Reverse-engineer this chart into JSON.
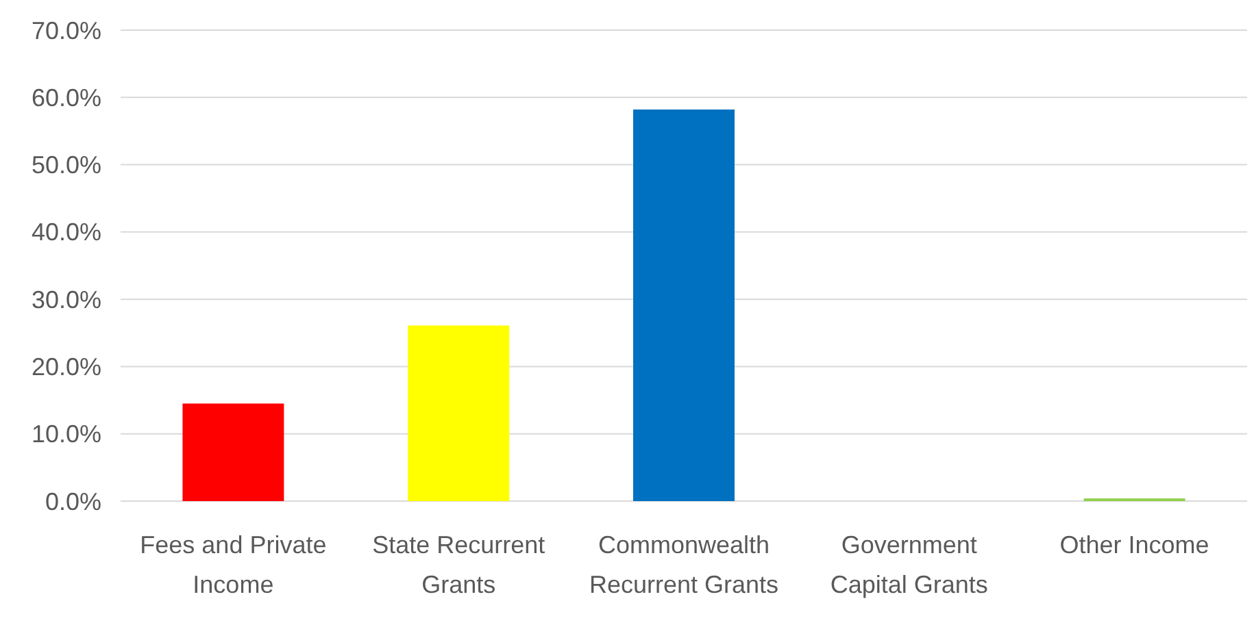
{
  "chart_data": {
    "type": "bar",
    "categories": [
      "Fees and Private Income",
      "State Recurrent Grants",
      "Commonwealth Recurrent Grants",
      "Government Capital Grants",
      "Other Income"
    ],
    "values": [
      14.5,
      26.1,
      58.2,
      0,
      0.4
    ],
    "colors": [
      "#ff0000",
      "#ffff00",
      "#0070c0",
      "#4472c4",
      "#92d050"
    ],
    "ylim": [
      0,
      70
    ],
    "yticks": [
      {
        "value": 0,
        "label": "0.0%"
      },
      {
        "value": 10,
        "label": "10.0%"
      },
      {
        "value": 20,
        "label": "20.0%"
      },
      {
        "value": 30,
        "label": "30.0%"
      },
      {
        "value": 40,
        "label": "40.0%"
      },
      {
        "value": 50,
        "label": "50.0%"
      },
      {
        "value": 60,
        "label": "60.0%"
      },
      {
        "value": 70,
        "label": "70.0%"
      }
    ],
    "grid": "y"
  }
}
